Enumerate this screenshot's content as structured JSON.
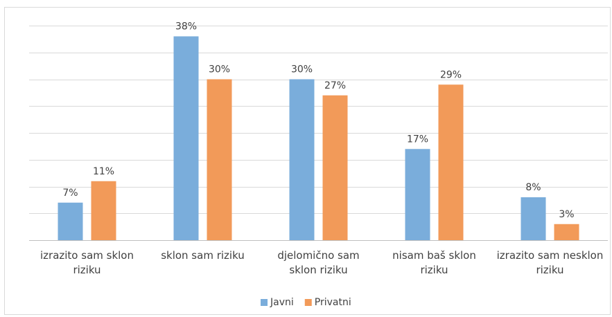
{
  "chart_data": {
    "type": "bar",
    "categories": [
      "izrazito sam sklon riziku",
      "sklon sam riziku",
      "djelomično sam sklon riziku",
      "nisam baš sklon riziku",
      "izrazito sam nesklon riziku"
    ],
    "series": [
      {
        "name": "Javni",
        "color": "#7aaddb",
        "values": [
          7,
          38,
          30,
          17,
          8
        ],
        "value_labels": [
          "7%",
          "38%",
          "30%",
          "17%",
          "8%"
        ]
      },
      {
        "name": "Privatni",
        "color": "#f29a59",
        "values": [
          11,
          30,
          27,
          29,
          3
        ],
        "value_labels": [
          "11%",
          "30%",
          "27%",
          "29%",
          "3%"
        ]
      }
    ],
    "ylim": [
      0,
      40
    ],
    "yticks": [
      0,
      5,
      10,
      15,
      20,
      25,
      30,
      35,
      40
    ],
    "grid": true,
    "legend": "bottom"
  }
}
